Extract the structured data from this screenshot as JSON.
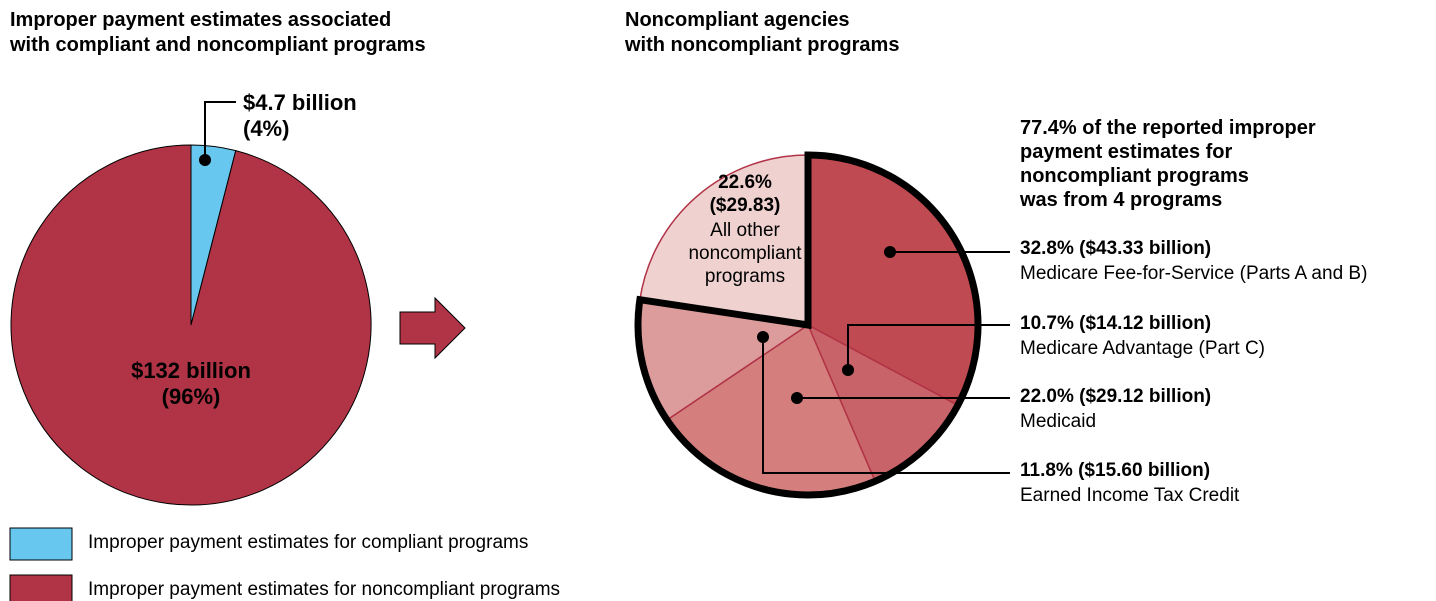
{
  "chart_data": [
    {
      "type": "pie",
      "title": "Improper payment estimates associated\nwith compliant and noncompliant programs",
      "categories": [
        "Improper payment estimates for compliant programs",
        "Improper payment estimates for noncompliant programs"
      ],
      "values": [
        4,
        96
      ],
      "value_labels": [
        "$4.7 billion\n(4%)",
        "$132 billion\n(96%)"
      ],
      "colors": [
        "#67c7ef",
        "#b03346"
      ],
      "legend": "bottom-left"
    },
    {
      "type": "pie",
      "title": "Noncompliant agencies\nwith noncompliant programs",
      "annotation": "77.4% of the reported improper\npayment estimates for\nnoncompliant programs\nwas from 4 programs",
      "categories": [
        "Medicare Fee-for-Service (Parts A and B)",
        "Medicare Advantage (Part C)",
        "Medicaid",
        "Earned Income Tax Credit",
        "All other\nnoncompliant\nprograms"
      ],
      "values": [
        32.8,
        10.7,
        22.0,
        11.8,
        22.6
      ],
      "value_labels": [
        "32.8% ($43.33 billion)",
        "10.7% ($14.12 billion)",
        "22.0% ($29.12 billion)",
        "11.8% ($15.60 billion)",
        "22.6%\n($29.83)"
      ],
      "colors": [
        "#c04a52",
        "#c9636a",
        "#d47e7e",
        "#dc9c9b",
        "#efd2cf"
      ]
    }
  ]
}
